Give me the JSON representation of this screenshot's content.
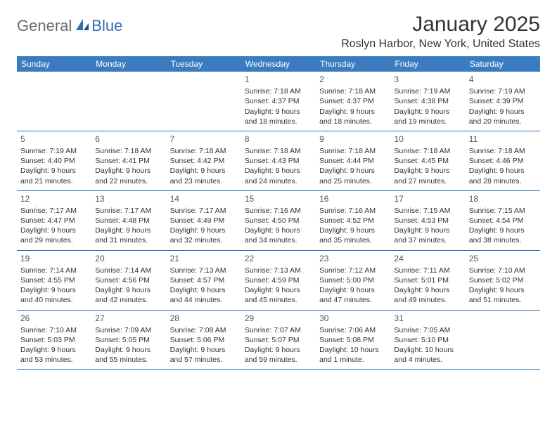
{
  "brand": {
    "general": "General",
    "blue": "Blue"
  },
  "month_title": "January 2025",
  "location": "Roslyn Harbor, New York, United States",
  "colors": {
    "header_bg": "#3a7cbf",
    "rule": "#2f6fb0",
    "text": "#333333",
    "logo_gray": "#6b6b6b",
    "logo_blue": "#2f6fb0"
  },
  "weekdays": [
    "Sunday",
    "Monday",
    "Tuesday",
    "Wednesday",
    "Thursday",
    "Friday",
    "Saturday"
  ],
  "weeks": [
    [
      null,
      null,
      null,
      {
        "n": "1",
        "sr": "Sunrise: 7:18 AM",
        "ss": "Sunset: 4:37 PM",
        "d1": "Daylight: 9 hours",
        "d2": "and 18 minutes."
      },
      {
        "n": "2",
        "sr": "Sunrise: 7:18 AM",
        "ss": "Sunset: 4:37 PM",
        "d1": "Daylight: 9 hours",
        "d2": "and 18 minutes."
      },
      {
        "n": "3",
        "sr": "Sunrise: 7:19 AM",
        "ss": "Sunset: 4:38 PM",
        "d1": "Daylight: 9 hours",
        "d2": "and 19 minutes."
      },
      {
        "n": "4",
        "sr": "Sunrise: 7:19 AM",
        "ss": "Sunset: 4:39 PM",
        "d1": "Daylight: 9 hours",
        "d2": "and 20 minutes."
      }
    ],
    [
      {
        "n": "5",
        "sr": "Sunrise: 7:19 AM",
        "ss": "Sunset: 4:40 PM",
        "d1": "Daylight: 9 hours",
        "d2": "and 21 minutes."
      },
      {
        "n": "6",
        "sr": "Sunrise: 7:18 AM",
        "ss": "Sunset: 4:41 PM",
        "d1": "Daylight: 9 hours",
        "d2": "and 22 minutes."
      },
      {
        "n": "7",
        "sr": "Sunrise: 7:18 AM",
        "ss": "Sunset: 4:42 PM",
        "d1": "Daylight: 9 hours",
        "d2": "and 23 minutes."
      },
      {
        "n": "8",
        "sr": "Sunrise: 7:18 AM",
        "ss": "Sunset: 4:43 PM",
        "d1": "Daylight: 9 hours",
        "d2": "and 24 minutes."
      },
      {
        "n": "9",
        "sr": "Sunrise: 7:18 AM",
        "ss": "Sunset: 4:44 PM",
        "d1": "Daylight: 9 hours",
        "d2": "and 25 minutes."
      },
      {
        "n": "10",
        "sr": "Sunrise: 7:18 AM",
        "ss": "Sunset: 4:45 PM",
        "d1": "Daylight: 9 hours",
        "d2": "and 27 minutes."
      },
      {
        "n": "11",
        "sr": "Sunrise: 7:18 AM",
        "ss": "Sunset: 4:46 PM",
        "d1": "Daylight: 9 hours",
        "d2": "and 28 minutes."
      }
    ],
    [
      {
        "n": "12",
        "sr": "Sunrise: 7:17 AM",
        "ss": "Sunset: 4:47 PM",
        "d1": "Daylight: 9 hours",
        "d2": "and 29 minutes."
      },
      {
        "n": "13",
        "sr": "Sunrise: 7:17 AM",
        "ss": "Sunset: 4:48 PM",
        "d1": "Daylight: 9 hours",
        "d2": "and 31 minutes."
      },
      {
        "n": "14",
        "sr": "Sunrise: 7:17 AM",
        "ss": "Sunset: 4:49 PM",
        "d1": "Daylight: 9 hours",
        "d2": "and 32 minutes."
      },
      {
        "n": "15",
        "sr": "Sunrise: 7:16 AM",
        "ss": "Sunset: 4:50 PM",
        "d1": "Daylight: 9 hours",
        "d2": "and 34 minutes."
      },
      {
        "n": "16",
        "sr": "Sunrise: 7:16 AM",
        "ss": "Sunset: 4:52 PM",
        "d1": "Daylight: 9 hours",
        "d2": "and 35 minutes."
      },
      {
        "n": "17",
        "sr": "Sunrise: 7:15 AM",
        "ss": "Sunset: 4:53 PM",
        "d1": "Daylight: 9 hours",
        "d2": "and 37 minutes."
      },
      {
        "n": "18",
        "sr": "Sunrise: 7:15 AM",
        "ss": "Sunset: 4:54 PM",
        "d1": "Daylight: 9 hours",
        "d2": "and 38 minutes."
      }
    ],
    [
      {
        "n": "19",
        "sr": "Sunrise: 7:14 AM",
        "ss": "Sunset: 4:55 PM",
        "d1": "Daylight: 9 hours",
        "d2": "and 40 minutes."
      },
      {
        "n": "20",
        "sr": "Sunrise: 7:14 AM",
        "ss": "Sunset: 4:56 PM",
        "d1": "Daylight: 9 hours",
        "d2": "and 42 minutes."
      },
      {
        "n": "21",
        "sr": "Sunrise: 7:13 AM",
        "ss": "Sunset: 4:57 PM",
        "d1": "Daylight: 9 hours",
        "d2": "and 44 minutes."
      },
      {
        "n": "22",
        "sr": "Sunrise: 7:13 AM",
        "ss": "Sunset: 4:59 PM",
        "d1": "Daylight: 9 hours",
        "d2": "and 45 minutes."
      },
      {
        "n": "23",
        "sr": "Sunrise: 7:12 AM",
        "ss": "Sunset: 5:00 PM",
        "d1": "Daylight: 9 hours",
        "d2": "and 47 minutes."
      },
      {
        "n": "24",
        "sr": "Sunrise: 7:11 AM",
        "ss": "Sunset: 5:01 PM",
        "d1": "Daylight: 9 hours",
        "d2": "and 49 minutes."
      },
      {
        "n": "25",
        "sr": "Sunrise: 7:10 AM",
        "ss": "Sunset: 5:02 PM",
        "d1": "Daylight: 9 hours",
        "d2": "and 51 minutes."
      }
    ],
    [
      {
        "n": "26",
        "sr": "Sunrise: 7:10 AM",
        "ss": "Sunset: 5:03 PM",
        "d1": "Daylight: 9 hours",
        "d2": "and 53 minutes."
      },
      {
        "n": "27",
        "sr": "Sunrise: 7:09 AM",
        "ss": "Sunset: 5:05 PM",
        "d1": "Daylight: 9 hours",
        "d2": "and 55 minutes."
      },
      {
        "n": "28",
        "sr": "Sunrise: 7:08 AM",
        "ss": "Sunset: 5:06 PM",
        "d1": "Daylight: 9 hours",
        "d2": "and 57 minutes."
      },
      {
        "n": "29",
        "sr": "Sunrise: 7:07 AM",
        "ss": "Sunset: 5:07 PM",
        "d1": "Daylight: 9 hours",
        "d2": "and 59 minutes."
      },
      {
        "n": "30",
        "sr": "Sunrise: 7:06 AM",
        "ss": "Sunset: 5:08 PM",
        "d1": "Daylight: 10 hours",
        "d2": "and 1 minute."
      },
      {
        "n": "31",
        "sr": "Sunrise: 7:05 AM",
        "ss": "Sunset: 5:10 PM",
        "d1": "Daylight: 10 hours",
        "d2": "and 4 minutes."
      },
      null
    ]
  ]
}
